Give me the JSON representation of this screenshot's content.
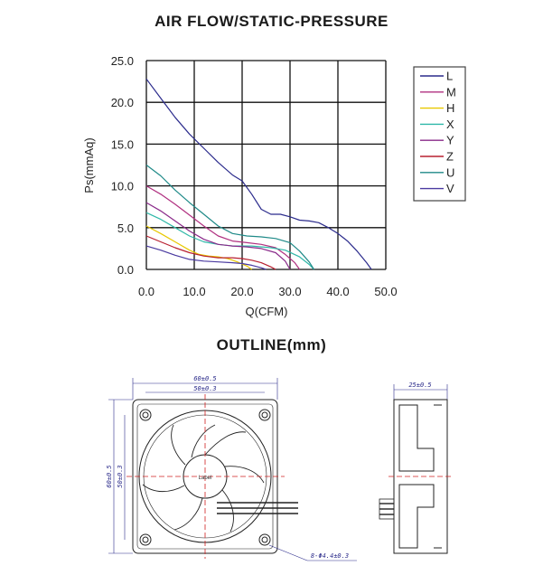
{
  "chart_title": "AIR FLOW/STATIC-PRESSURE",
  "outline_title": "OUTLINE(mm)",
  "chart_data": {
    "type": "line",
    "title": "AIR FLOW/STATIC-PRESSURE",
    "xlabel": "Q(CFM)",
    "ylabel": "Ps(mmAq)",
    "xlim": [
      0,
      50
    ],
    "ylim": [
      0,
      25
    ],
    "xticks": [
      "0.0",
      "10.0",
      "20.0",
      "30.0",
      "40.0",
      "50.0"
    ],
    "yticks": [
      "0.0",
      "5.0",
      "10.0",
      "15.0",
      "20.0",
      "25.0"
    ],
    "grid": true,
    "legend_position": "right",
    "series": [
      {
        "name": "L",
        "color": "#2b2b8c",
        "x": [
          0,
          3,
          6,
          9,
          12,
          15,
          18,
          20,
          22,
          24,
          26,
          28,
          30,
          32,
          34,
          36,
          38,
          40,
          42,
          44,
          46,
          47
        ],
        "y": [
          22.8,
          20.5,
          18.2,
          16.2,
          14.5,
          12.8,
          11.3,
          10.6,
          9.0,
          7.2,
          6.6,
          6.6,
          6.3,
          5.9,
          5.8,
          5.6,
          5.0,
          4.3,
          3.4,
          2.2,
          0.8,
          0
        ]
      },
      {
        "name": "M",
        "color": "#b03080",
        "x": [
          0,
          3,
          6,
          9,
          12,
          15,
          18,
          21,
          24,
          27,
          29,
          31,
          32
        ],
        "y": [
          10.0,
          9.0,
          7.8,
          6.5,
          5.2,
          4.0,
          3.4,
          3.2,
          3.0,
          2.6,
          1.8,
          0.8,
          0
        ]
      },
      {
        "name": "H",
        "color": "#e8c800",
        "x": [
          0,
          3,
          6,
          9,
          11,
          13,
          15,
          17,
          19,
          21,
          22
        ],
        "y": [
          5.2,
          4.3,
          3.3,
          2.3,
          1.8,
          1.6,
          1.5,
          1.3,
          0.9,
          0.4,
          0
        ]
      },
      {
        "name": "X",
        "color": "#2fb8a8",
        "x": [
          0,
          3,
          6,
          9,
          12,
          15,
          18,
          22,
          26,
          29,
          32,
          34,
          35
        ],
        "y": [
          6.8,
          6.0,
          5.0,
          4.0,
          3.3,
          3.0,
          2.8,
          2.8,
          2.6,
          2.3,
          1.5,
          0.6,
          0
        ]
      },
      {
        "name": "Y",
        "color": "#8a2a8a",
        "x": [
          0,
          3,
          6,
          9,
          12,
          15,
          18,
          21,
          24,
          27,
          29,
          30
        ],
        "y": [
          8.0,
          7.0,
          5.8,
          4.6,
          3.6,
          3.0,
          2.8,
          2.7,
          2.5,
          2.0,
          1.0,
          0
        ]
      },
      {
        "name": "Z",
        "color": "#b82030",
        "x": [
          0,
          3,
          6,
          9,
          12,
          15,
          18,
          20,
          22,
          24,
          26,
          27
        ],
        "y": [
          4.0,
          3.3,
          2.6,
          2.0,
          1.6,
          1.4,
          1.4,
          1.3,
          1.1,
          0.8,
          0.3,
          0
        ]
      },
      {
        "name": "U",
        "color": "#1f8a88",
        "x": [
          0,
          3,
          6,
          9,
          12,
          15,
          18,
          21,
          24,
          27,
          30,
          32,
          34,
          35
        ],
        "y": [
          12.5,
          11.2,
          9.5,
          8.0,
          6.6,
          5.2,
          4.3,
          4.0,
          3.9,
          3.7,
          3.2,
          2.2,
          0.9,
          0
        ]
      },
      {
        "name": "V",
        "color": "#4a3aa0",
        "x": [
          0,
          3,
          6,
          9,
          12,
          15,
          18,
          20,
          22,
          24,
          25
        ],
        "y": [
          2.8,
          2.3,
          1.7,
          1.2,
          1.0,
          0.9,
          0.8,
          0.7,
          0.5,
          0.2,
          0
        ]
      }
    ]
  },
  "outline": {
    "width_total": "60±0.5",
    "width_holes": "50±0.3",
    "height_total": "60±0.5",
    "height_holes": "50±0.3",
    "depth": "25±0.5",
    "hole": "8-Φ4.4±0.3",
    "label": "Label"
  }
}
